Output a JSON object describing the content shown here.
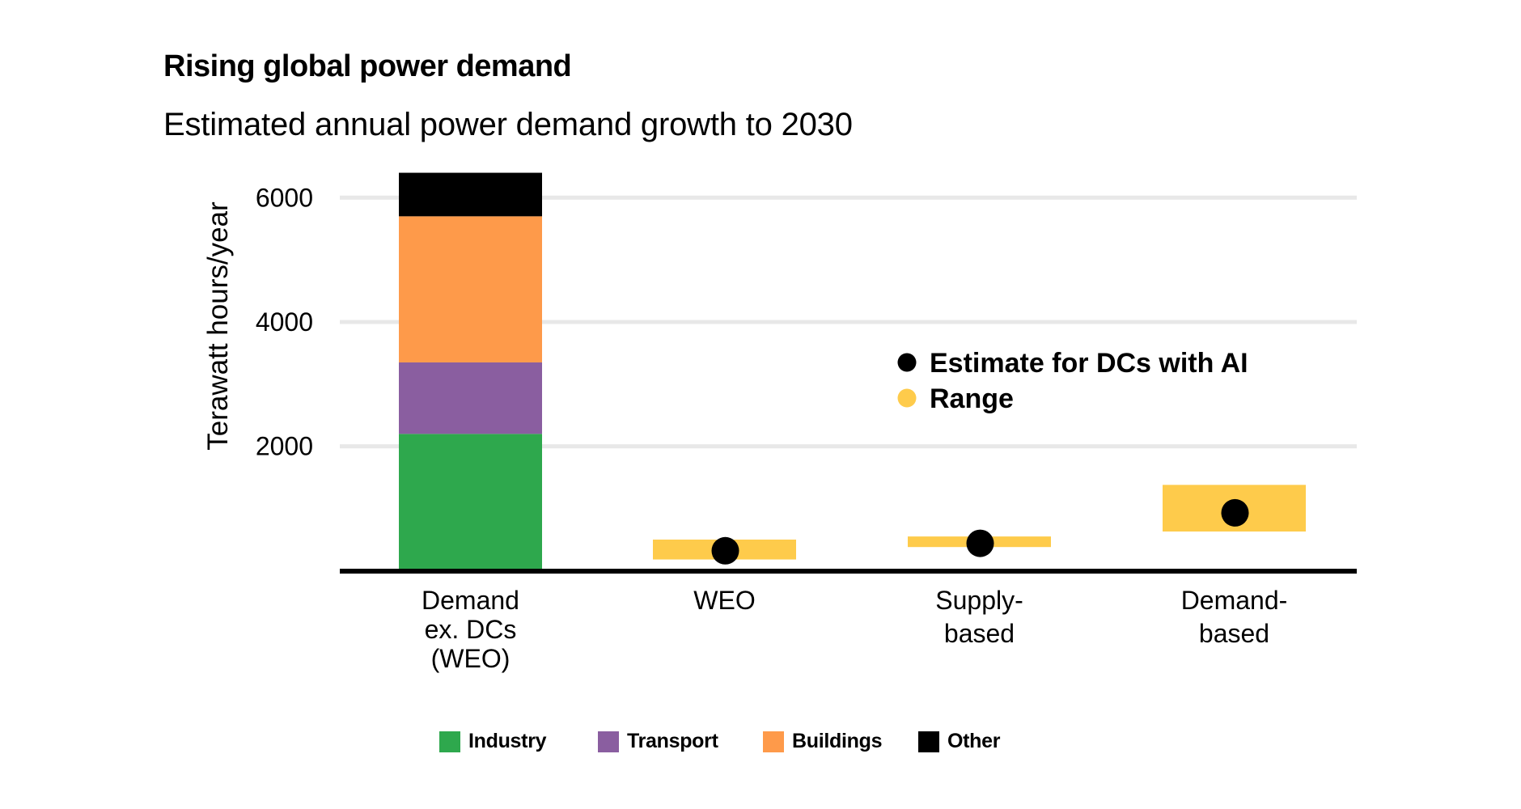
{
  "title": "Rising global power demand",
  "subtitle": "Estimated annual power demand growth to 2030",
  "chart_data": {
    "type": "bar",
    "title": "Rising global power demand",
    "subtitle": "Estimated annual power demand growth to 2030",
    "xlabel": "",
    "ylabel": "Terawatt hours/year",
    "ylim": [
      0,
      6400
    ],
    "yticks": [
      2000,
      4000,
      6000
    ],
    "grid": true,
    "categories": [
      {
        "id": "demand-ex-dcs",
        "lines": [
          "Demand",
          "ex. DCs",
          "(WEO)"
        ]
      },
      {
        "id": "weo",
        "lines": [
          "WEO"
        ]
      },
      {
        "id": "supply-based",
        "lines": [
          "Supply-",
          "based"
        ]
      },
      {
        "id": "demand-based",
        "lines": [
          "Demand-",
          "based"
        ]
      }
    ],
    "stacked_bar": {
      "category": "demand-ex-dcs",
      "series": [
        {
          "name": "Industry",
          "value": 2200,
          "color": "#2ea84d"
        },
        {
          "name": "Transport",
          "value": 1150,
          "color": "#8a5ea0"
        },
        {
          "name": "Buildings",
          "value": 2350,
          "color": "#fe9a4a"
        },
        {
          "name": "Other",
          "value": 700,
          "color": "#000000"
        }
      ],
      "total": 6400
    },
    "ranges": [
      {
        "category": "weo",
        "low": 180,
        "high": 500,
        "estimate": 320
      },
      {
        "category": "supply-based",
        "low": 380,
        "high": 550,
        "estimate": 440
      },
      {
        "category": "demand-based",
        "low": 630,
        "high": 1380,
        "estimate": 930
      }
    ],
    "range_color": "#fecb4b",
    "estimate_color": "#000000",
    "inplot_legend": {
      "placement": "center-right",
      "items": [
        {
          "label": "Estimate for DCs with AI",
          "color": "#000000",
          "marker": "circle"
        },
        {
          "label": "Range",
          "color": "#fecb4b",
          "marker": "circle"
        }
      ]
    },
    "legend": {
      "placement": "bottom",
      "items": [
        {
          "label": "Industry",
          "color": "#2ea84d"
        },
        {
          "label": "Transport",
          "color": "#8a5ea0"
        },
        {
          "label": "Buildings",
          "color": "#fe9a4a"
        },
        {
          "label": "Other",
          "color": "#000000"
        }
      ]
    }
  }
}
